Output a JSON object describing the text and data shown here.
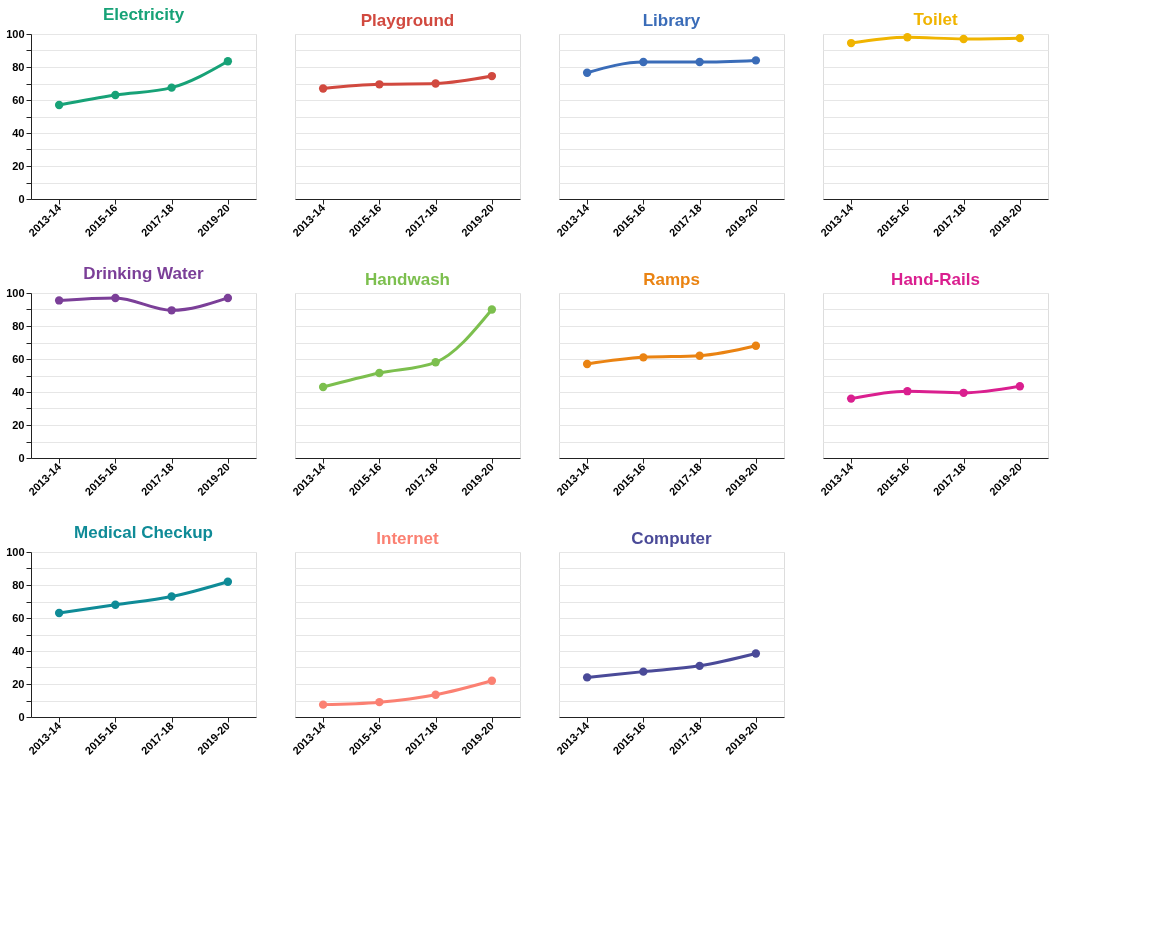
{
  "chart_data": [
    {
      "type": "line",
      "title": "Electricity",
      "categories": [
        "2013-14",
        "2015-16",
        "2017-18",
        "2019-20"
      ],
      "series": [
        {
          "color": "#17a277",
          "values": [
            57,
            63,
            67.5,
            83.5
          ]
        }
      ],
      "ylim": [
        0,
        100
      ],
      "yticks": [
        0,
        {
          "value": 10,
          "label": null
        },
        20,
        {
          "value": 30,
          "label": null
        },
        40,
        {
          "value": 50,
          "label": null
        },
        60,
        {
          "value": 70,
          "label": null
        },
        80,
        {
          "value": 90,
          "label": null
        },
        100
      ],
      "grid": "y",
      "marker": "circle",
      "line_style": "solid"
    },
    {
      "type": "line",
      "title": "Playground",
      "categories": [
        "2013-14",
        "2015-16",
        "2017-18",
        "2019-20"
      ],
      "series": [
        {
          "color": "#d1493f",
          "values": [
            67,
            69.5,
            70,
            74.5
          ]
        }
      ],
      "ylim": [
        0,
        100
      ],
      "yticks": [
        0,
        {
          "value": 10,
          "label": null
        },
        20,
        {
          "value": 30,
          "label": null
        },
        40,
        {
          "value": 50,
          "label": null
        },
        60,
        {
          "value": 70,
          "label": null
        },
        80,
        {
          "value": 90,
          "label": null
        },
        100
      ],
      "grid": "y",
      "marker": "circle",
      "line_style": "solid",
      "tick_labels": "x"
    },
    {
      "type": "line",
      "title": "Library",
      "categories": [
        "2013-14",
        "2015-16",
        "2017-18",
        "2019-20"
      ],
      "series": [
        {
          "color": "#3a6cb8",
          "values": [
            76.5,
            83,
            83,
            84
          ]
        }
      ],
      "ylim": [
        0,
        100
      ],
      "yticks": [
        0,
        {
          "value": 10,
          "label": null
        },
        20,
        {
          "value": 30,
          "label": null
        },
        40,
        {
          "value": 50,
          "label": null
        },
        60,
        {
          "value": 70,
          "label": null
        },
        80,
        {
          "value": 90,
          "label": null
        },
        100
      ],
      "grid": "y",
      "marker": "circle",
      "line_style": "solid",
      "tick_labels": "x"
    },
    {
      "type": "line",
      "title": "Toilet",
      "categories": [
        "2013-14",
        "2015-16",
        "2017-18",
        "2019-20"
      ],
      "series": [
        {
          "color": "#f0b400",
          "values": [
            94.5,
            98,
            97,
            97.5
          ]
        }
      ],
      "ylim": [
        0,
        100
      ],
      "yticks": [
        0,
        {
          "value": 10,
          "label": null
        },
        20,
        {
          "value": 30,
          "label": null
        },
        40,
        {
          "value": 50,
          "label": null
        },
        60,
        {
          "value": 70,
          "label": null
        },
        80,
        {
          "value": 90,
          "label": null
        },
        100
      ],
      "grid": "y",
      "marker": "circle",
      "line_style": "solid",
      "tick_labels": "x"
    },
    {
      "type": "line",
      "title": "Drinking Water",
      "categories": [
        "2013-14",
        "2015-16",
        "2017-18",
        "2019-20"
      ],
      "series": [
        {
          "color": "#7b3f98",
          "values": [
            95.5,
            97,
            89.5,
            97
          ]
        }
      ],
      "ylim": [
        0,
        100
      ],
      "yticks": [
        0,
        {
          "value": 10,
          "label": null
        },
        20,
        {
          "value": 30,
          "label": null
        },
        40,
        {
          "value": 50,
          "label": null
        },
        60,
        {
          "value": 70,
          "label": null
        },
        80,
        {
          "value": 90,
          "label": null
        },
        100
      ],
      "grid": "y",
      "marker": "circle",
      "line_style": "solid"
    },
    {
      "type": "line",
      "title": "Handwash",
      "categories": [
        "2013-14",
        "2015-16",
        "2017-18",
        "2019-20"
      ],
      "series": [
        {
          "color": "#7cbf4e",
          "values": [
            43,
            51.5,
            58,
            90
          ]
        }
      ],
      "ylim": [
        0,
        100
      ],
      "yticks": [
        0,
        {
          "value": 10,
          "label": null
        },
        20,
        {
          "value": 30,
          "label": null
        },
        40,
        {
          "value": 50,
          "label": null
        },
        60,
        {
          "value": 70,
          "label": null
        },
        80,
        {
          "value": 90,
          "label": null
        },
        100
      ],
      "grid": "y",
      "marker": "circle",
      "line_style": "solid",
      "tick_labels": "x"
    },
    {
      "type": "line",
      "title": "Ramps",
      "categories": [
        "2013-14",
        "2015-16",
        "2017-18",
        "2019-20"
      ],
      "series": [
        {
          "color": "#ea8312",
          "values": [
            57,
            61,
            62,
            68
          ]
        }
      ],
      "ylim": [
        0,
        100
      ],
      "yticks": [
        0,
        {
          "value": 10,
          "label": null
        },
        20,
        {
          "value": 30,
          "label": null
        },
        40,
        {
          "value": 50,
          "label": null
        },
        60,
        {
          "value": 70,
          "label": null
        },
        80,
        {
          "value": 90,
          "label": null
        },
        100
      ],
      "grid": "y",
      "marker": "circle",
      "line_style": "solid",
      "tick_labels": "x"
    },
    {
      "type": "line",
      "title": "Hand-Rails",
      "categories": [
        "2013-14",
        "2015-16",
        "2017-18",
        "2019-20"
      ],
      "series": [
        {
          "color": "#da1f8f",
          "values": [
            36,
            40.5,
            39.5,
            43.5
          ]
        }
      ],
      "ylim": [
        0,
        100
      ],
      "yticks": [
        0,
        {
          "value": 10,
          "label": null
        },
        20,
        {
          "value": 30,
          "label": null
        },
        40,
        {
          "value": 50,
          "label": null
        },
        60,
        {
          "value": 70,
          "label": null
        },
        80,
        {
          "value": 90,
          "label": null
        },
        100
      ],
      "grid": "y",
      "marker": "circle",
      "line_style": "solid",
      "tick_labels": "x"
    },
    {
      "type": "line",
      "title": "Medical Checkup",
      "categories": [
        "2013-14",
        "2015-16",
        "2017-18",
        "2019-20"
      ],
      "series": [
        {
          "color": "#0f8b97",
          "values": [
            63,
            68,
            73,
            82
          ]
        }
      ],
      "ylim": [
        0,
        100
      ],
      "yticks": [
        0,
        {
          "value": 10,
          "label": null
        },
        20,
        {
          "value": 30,
          "label": null
        },
        40,
        {
          "value": 50,
          "label": null
        },
        60,
        {
          "value": 70,
          "label": null
        },
        80,
        {
          "value": 90,
          "label": null
        },
        100
      ],
      "grid": "y",
      "marker": "circle",
      "line_style": "solid"
    },
    {
      "type": "line",
      "title": "Internet",
      "categories": [
        "2013-14",
        "2015-16",
        "2017-18",
        "2019-20"
      ],
      "series": [
        {
          "color": "#fb8072",
          "values": [
            7.5,
            9,
            13.5,
            22
          ]
        }
      ],
      "ylim": [
        0,
        100
      ],
      "yticks": [
        0,
        {
          "value": 10,
          "label": null
        },
        20,
        {
          "value": 30,
          "label": null
        },
        40,
        {
          "value": 50,
          "label": null
        },
        60,
        {
          "value": 70,
          "label": null
        },
        80,
        {
          "value": 90,
          "label": null
        },
        100
      ],
      "grid": "y",
      "marker": "circle",
      "line_style": "solid",
      "tick_labels": "x"
    },
    {
      "type": "line",
      "title": "Computer",
      "categories": [
        "2013-14",
        "2015-16",
        "2017-18",
        "2019-20"
      ],
      "series": [
        {
          "color": "#4a4a98",
          "values": [
            24,
            27.5,
            31,
            38.5
          ]
        }
      ],
      "ylim": [
        0,
        100
      ],
      "yticks": [
        0,
        {
          "value": 10,
          "label": null
        },
        20,
        {
          "value": 30,
          "label": null
        },
        40,
        {
          "value": 50,
          "label": null
        },
        60,
        {
          "value": 70,
          "label": null
        },
        80,
        {
          "value": 90,
          "label": null
        },
        100
      ],
      "grid": "y",
      "marker": "circle",
      "line_style": "solid",
      "tick_labels": "x"
    }
  ]
}
